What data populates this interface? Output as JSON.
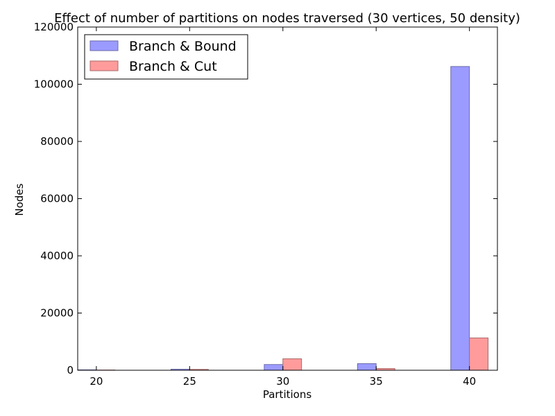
{
  "chart_data": {
    "type": "bar",
    "title": "Effect of number of partitions on nodes traversed (30 vertices, 50 density)",
    "xlabel": "Partitions",
    "ylabel": "Nodes",
    "categories": [
      20,
      25,
      30,
      35,
      40
    ],
    "xlim": [
      19,
      41.5
    ],
    "ylim": [
      0,
      120000
    ],
    "yticks": [
      0,
      20000,
      40000,
      60000,
      80000,
      100000,
      120000
    ],
    "legend_position": "top-left",
    "grid": false,
    "series": [
      {
        "name": "Branch & Bound",
        "color": "#9b9bff",
        "edge": "#6a6aaa",
        "values": [
          150,
          350,
          2000,
          2300,
          106200
        ]
      },
      {
        "name": "Branch & Cut",
        "color": "#ff9b9b",
        "edge": "#aa6a6a",
        "values": [
          80,
          300,
          4000,
          600,
          11300
        ]
      }
    ]
  }
}
